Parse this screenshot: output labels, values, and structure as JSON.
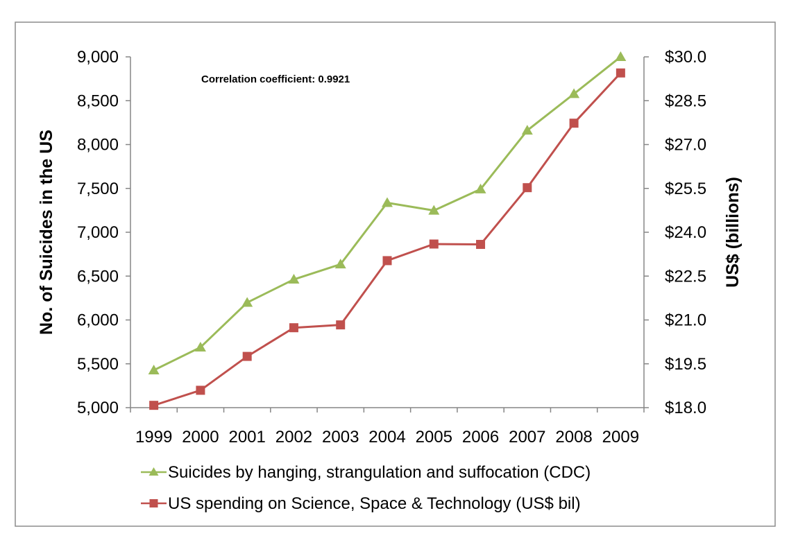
{
  "chart_data": {
    "type": "line",
    "categories": [
      "1999",
      "2000",
      "2001",
      "2002",
      "2003",
      "2004",
      "2005",
      "2006",
      "2007",
      "2008",
      "2009"
    ],
    "series": [
      {
        "name": "Suicides by hanging, strangulation and suffocation (CDC)",
        "axis": "left",
        "color": "#9BBB59",
        "marker": "triangle",
        "values": [
          5427,
          5688,
          6198,
          6462,
          6635,
          7336,
          7248,
          7491,
          8161,
          8578,
          9000
        ]
      },
      {
        "name": "US spending on Science, Space & Technology (US$ bil)",
        "axis": "right",
        "color": "#C0504D",
        "marker": "square",
        "values": [
          18.079,
          18.594,
          19.753,
          20.734,
          20.831,
          23.029,
          23.597,
          23.584,
          25.525,
          27.731,
          29.449
        ]
      }
    ],
    "ylabel": "No. of Suicides in the US",
    "y2label": "US$ (billions)",
    "ylim": [
      5000,
      9000
    ],
    "y2lim": [
      18.0,
      30.0
    ],
    "yticks": [
      "5,000",
      "5,500",
      "6,000",
      "6,500",
      "7,000",
      "7,500",
      "8,000",
      "8,500",
      "9,000"
    ],
    "y2ticks": [
      "$18.0",
      "$19.5",
      "$21.0",
      "$22.5",
      "$24.0",
      "$25.5",
      "$27.0",
      "$28.5",
      "$30.0"
    ],
    "annotation": "Correlation coefficient: 0.9921",
    "grid": false,
    "legend_position": "bottom"
  }
}
